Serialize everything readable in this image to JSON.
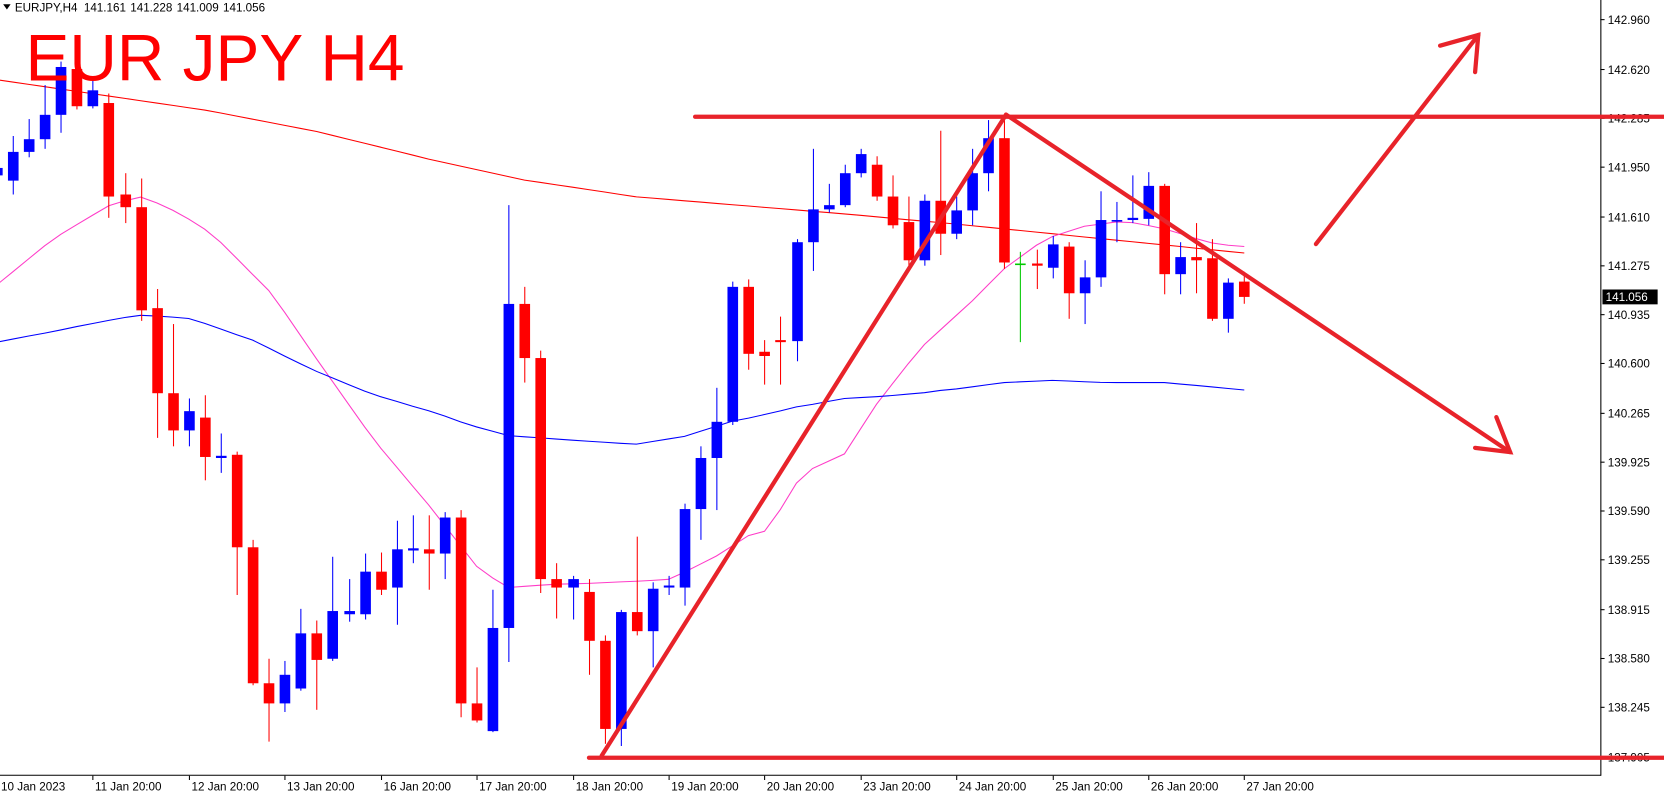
{
  "chart_data": {
    "type": "candlestick",
    "title": "EUR JPY H4",
    "symbol": "EURJPY,H4",
    "up_color": "#0000ff",
    "down_color": "#ff0000",
    "doji_color": "#00c800",
    "categories": [
      "10 Jan 2023",
      null,
      null,
      null,
      null,
      null,
      "11 Jan 20:00",
      null,
      null,
      null,
      null,
      null,
      "12 Jan 20:00",
      null,
      null,
      null,
      null,
      null,
      "13 Jan 20:00",
      null,
      null,
      null,
      null,
      null,
      "16 Jan 20:00",
      null,
      null,
      null,
      null,
      null,
      "17 Jan 20:00",
      null,
      null,
      null,
      null,
      null,
      "18 Jan 20:00",
      null,
      null,
      null,
      null,
      null,
      "19 Jan 20:00",
      null,
      null,
      null,
      null,
      null,
      "20 Jan 20:00",
      null,
      null,
      null,
      null,
      null,
      "23 Jan 20:00",
      null,
      null,
      null,
      null,
      null,
      "24 Jan 20:00",
      null,
      null,
      null,
      null,
      null,
      "25 Jan 20:00",
      null,
      null,
      null,
      null,
      null,
      "26 Jan 20:00",
      null,
      null,
      null,
      null,
      null,
      "27 Jan 20:00"
    ],
    "open": [
      141.889,
      141.853,
      142.05,
      142.137,
      142.304,
      142.618,
      142.363,
      142.385,
      141.758,
      141.671,
      140.979,
      140.396,
      140.141,
      140.229,
      139.952,
      139.974,
      139.34,
      138.408,
      138.27,
      138.372,
      138.75,
      138.576,
      138.881,
      138.881,
      139.173,
      139.064,
      139.318,
      139.326,
      139.297,
      139.544,
      138.27,
      138.08,
      138.787,
      141.008,
      140.637,
      139.122,
      139.064,
      139.034,
      138.699,
      138.095,
      138.896,
      138.765,
      139.064,
      139.064,
      139.602,
      139.952,
      140.2,
      141.125,
      140.68,
      140.76,
      140.753,
      141.431,
      141.656,
      141.685,
      141.904,
      141.962,
      141.744,
      141.569,
      141.307,
      141.715,
      141.489,
      141.649,
      141.904,
      142.144,
      141.285,
      141.285,
      141.256,
      141.401,
      141.081,
      141.19,
      141.576,
      141.583,
      141.591,
      141.817,
      141.212,
      141.329,
      141.321,
      140.906,
      141.161
    ],
    "high": [
      141.999,
      142.159,
      142.275,
      142.508,
      142.669,
      142.654,
      142.545,
      142.45,
      141.904,
      141.868,
      141.11,
      140.87,
      140.36,
      140.382,
      140.12,
      139.996,
      139.391,
      138.576,
      138.561,
      138.918,
      138.838,
      139.275,
      139.122,
      139.297,
      139.304,
      139.522,
      139.559,
      139.559,
      139.581,
      139.595,
      138.517,
      139.049,
      141.685,
      141.125,
      140.688,
      139.231,
      139.144,
      139.122,
      138.736,
      138.911,
      139.413,
      139.1,
      139.144,
      139.639,
      140.032,
      140.433,
      141.161,
      141.176,
      140.76,
      140.921,
      141.452,
      142.071,
      141.831,
      141.962,
      142.071,
      142.02,
      141.889,
      141.744,
      141.758,
      142.195,
      141.744,
      142.071,
      142.268,
      142.275,
      141.365,
      141.38,
      141.474,
      141.431,
      141.307,
      141.78,
      141.707,
      141.889,
      141.911,
      141.831,
      141.431,
      141.562,
      141.452,
      141.183,
      141.228
    ],
    "low": [
      141.853,
      141.758,
      142.013,
      142.071,
      142.181,
      142.341,
      142.348,
      141.598,
      141.562,
      140.892,
      140.09,
      140.032,
      140.032,
      139.799,
      139.85,
      139.013,
      138.394,
      138.008,
      138.211,
      138.357,
      138.226,
      138.561,
      138.83,
      138.845,
      139.013,
      138.809,
      139.231,
      139.049,
      139.122,
      138.175,
      138.139,
      138.073,
      138.554,
      140.469,
      139.027,
      138.852,
      138.845,
      138.466,
      137.993,
      137.978,
      138.736,
      138.517,
      139.013,
      138.94,
      139.391,
      139.595,
      140.178,
      140.557,
      140.455,
      140.455,
      140.615,
      141.234,
      141.634,
      141.671,
      141.875,
      141.715,
      141.525,
      141.27,
      141.27,
      141.343,
      141.452,
      141.547,
      141.78,
      141.248,
      140.746,
      141.11,
      141.183,
      140.906,
      140.87,
      141.125,
      141.431,
      141.562,
      141.547,
      141.074,
      141.074,
      141.081,
      140.892,
      140.811,
      141.009
    ],
    "close": [
      141.94,
      142.05,
      142.137,
      142.304,
      142.632,
      142.363,
      142.472,
      141.744,
      141.671,
      140.964,
      140.396,
      140.141,
      140.273,
      139.959,
      139.967,
      139.34,
      138.408,
      138.27,
      138.466,
      138.75,
      138.568,
      138.903,
      138.903,
      139.173,
      139.049,
      139.326,
      139.333,
      139.297,
      139.544,
      138.27,
      138.153,
      138.787,
      141.008,
      140.637,
      139.122,
      139.064,
      139.122,
      138.699,
      138.095,
      138.896,
      138.765,
      139.056,
      139.078,
      139.602,
      139.952,
      140.2,
      141.125,
      140.666,
      140.651,
      140.746,
      141.431,
      141.656,
      141.685,
      141.904,
      142.035,
      141.744,
      141.547,
      141.307,
      141.715,
      141.489,
      141.649,
      141.904,
      142.144,
      141.292,
      141.285,
      141.27,
      141.416,
      141.081,
      141.19,
      141.583,
      141.583,
      141.598,
      141.817,
      141.212,
      141.329,
      141.307,
      140.906,
      141.154,
      141.056
    ],
    "moving_averages": [
      {
        "color": "#ff0000",
        "values": [
          142.545,
          142.529,
          142.513,
          142.497,
          142.481,
          142.465,
          142.449,
          142.433,
          142.417,
          142.401,
          142.385,
          142.369,
          142.353,
          142.337,
          142.316,
          142.295,
          142.274,
          142.253,
          142.232,
          142.211,
          142.19,
          142.163,
          142.136,
          142.109,
          142.082,
          142.055,
          142.028,
          142.001,
          141.977,
          141.953,
          141.929,
          141.905,
          141.881,
          141.857,
          141.841,
          141.824,
          141.808,
          141.791,
          141.775,
          141.758,
          141.742,
          141.733,
          141.724,
          141.715,
          141.706,
          141.697,
          141.688,
          141.679,
          141.67,
          141.661,
          141.652,
          141.643,
          141.634,
          141.625,
          141.615,
          141.605,
          141.595,
          141.585,
          141.575,
          141.565,
          141.555,
          141.544,
          141.533,
          141.522,
          141.511,
          141.5,
          141.489,
          141.478,
          141.467,
          141.456,
          141.445,
          141.434,
          141.423,
          141.412,
          141.401,
          141.39,
          141.379,
          141.368,
          141.357
        ]
      },
      {
        "color": "#ff3cc8",
        "values": [
          141.139,
          141.228,
          141.318,
          141.407,
          141.485,
          141.551,
          141.617,
          141.681,
          141.715,
          141.74,
          141.7,
          141.65,
          141.59,
          141.52,
          141.43,
          141.32,
          141.21,
          141.1,
          140.95,
          140.79,
          140.63,
          140.475,
          140.32,
          140.165,
          140.02,
          139.89,
          139.76,
          139.63,
          139.49,
          139.35,
          139.21,
          139.13,
          139.064,
          139.072,
          139.08,
          139.087,
          139.09,
          139.093,
          139.098,
          139.103,
          139.107,
          139.113,
          139.12,
          139.17,
          139.225,
          139.28,
          139.35,
          139.42,
          139.45,
          139.6,
          139.78,
          139.88,
          139.93,
          139.98,
          140.15,
          140.32,
          140.46,
          140.6,
          140.73,
          140.83,
          140.93,
          141.03,
          141.14,
          141.25,
          141.33,
          141.41,
          141.47,
          141.505,
          141.54,
          141.555,
          141.57,
          141.565,
          141.545,
          141.522,
          141.49,
          141.455,
          141.425,
          141.41,
          141.401
        ]
      },
      {
        "color": "#0000ff",
        "values": [
          140.746,
          140.767,
          140.788,
          140.808,
          140.83,
          140.853,
          140.874,
          140.895,
          140.915,
          140.93,
          140.925,
          140.918,
          140.908,
          140.875,
          140.836,
          140.797,
          140.76,
          140.706,
          140.65,
          140.597,
          140.545,
          140.5,
          140.455,
          140.41,
          140.372,
          140.34,
          140.307,
          140.276,
          140.24,
          140.2,
          140.165,
          140.135,
          140.105,
          140.097,
          140.09,
          140.082,
          140.074,
          140.067,
          140.06,
          140.053,
          140.047,
          140.065,
          140.083,
          140.1,
          140.135,
          140.17,
          140.205,
          140.225,
          140.25,
          140.275,
          140.302,
          140.32,
          140.34,
          140.36,
          140.366,
          140.372,
          140.38,
          140.39,
          140.4,
          140.415,
          140.425,
          140.44,
          140.455,
          140.469,
          140.474,
          140.479,
          140.484,
          140.48,
          140.475,
          140.47,
          140.469,
          140.469,
          140.469,
          140.469,
          140.459,
          140.449,
          140.439,
          140.428,
          140.418
        ]
      }
    ],
    "ylim": [
      137.774,
      143.091
    ],
    "yticks": [
      {
        "value": 142.96,
        "label": "142.960"
      },
      {
        "value": 142.62,
        "label": "142.620"
      },
      142.285,
      {
        "value": 141.95,
        "label": "141.950"
      },
      {
        "value": 141.61,
        "label": "141.610"
      },
      141.275,
      140.935,
      {
        "value": 140.6,
        "label": "140.600"
      },
      140.265,
      139.925,
      {
        "value": 139.59,
        "label": "139.590"
      },
      139.255,
      138.915,
      {
        "value": 138.58,
        "label": "138.580"
      },
      138.245,
      137.905
    ],
    "grid": false
  }
}
